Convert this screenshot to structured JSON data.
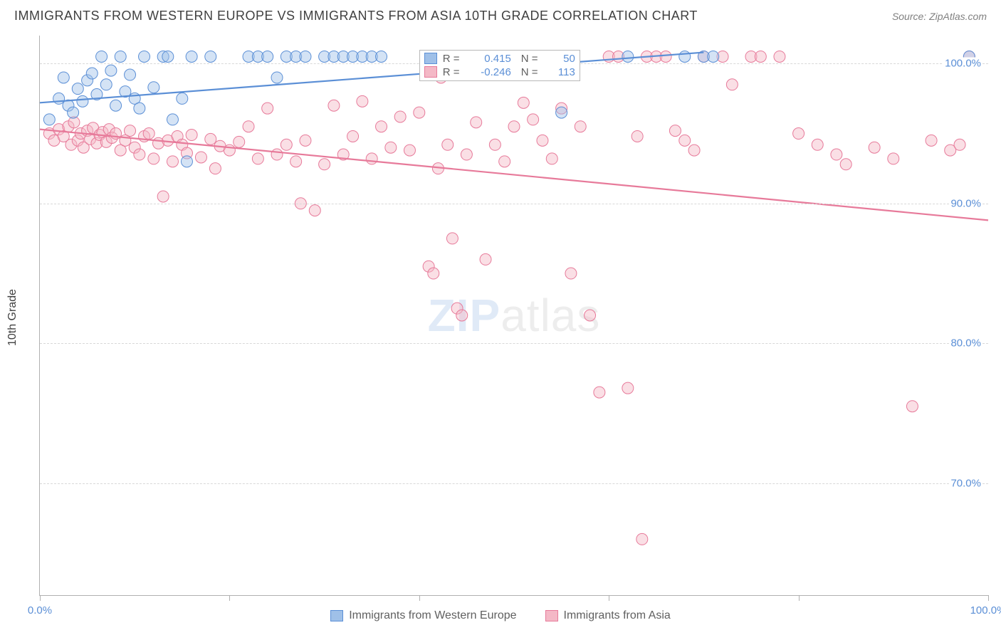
{
  "title": "IMMIGRANTS FROM WESTERN EUROPE VS IMMIGRANTS FROM ASIA 10TH GRADE CORRELATION CHART",
  "source": "Source: ZipAtlas.com",
  "watermark_strong": "ZIP",
  "watermark_light": "atlas",
  "ylabel": "10th Grade",
  "chart": {
    "type": "scatter-with-trend",
    "background_color": "#ffffff",
    "grid_color": "#d8d8d8",
    "axis_color": "#b0b0b0",
    "tick_label_color": "#5b8fd6",
    "xlim": [
      0,
      100
    ],
    "ylim": [
      62,
      102
    ],
    "xticks": [
      0,
      20,
      40,
      60,
      80,
      100
    ],
    "xtick_labels_shown": {
      "0": "0.0%",
      "100": "100.0%"
    },
    "yticks": [
      70,
      80,
      90,
      100
    ],
    "ytick_labels": {
      "70": "70.0%",
      "80": "80.0%",
      "90": "90.0%",
      "100": "100.0%"
    },
    "marker_radius": 8,
    "marker_opacity": 0.45,
    "trend_width": 2.2,
    "series": [
      {
        "name": "Immigrants from Western Europe",
        "color_fill": "#9fc0e8",
        "color_stroke": "#5b8fd6",
        "R": "0.415",
        "N": "50",
        "trend": {
          "x1": 0,
          "y1": 97.2,
          "x2": 70,
          "y2": 100.8
        },
        "points": [
          [
            1,
            96
          ],
          [
            2,
            97.5
          ],
          [
            2.5,
            99
          ],
          [
            3,
            97
          ],
          [
            3.5,
            96.5
          ],
          [
            4,
            98.2
          ],
          [
            4.5,
            97.3
          ],
          [
            5,
            98.8
          ],
          [
            5.5,
            99.3
          ],
          [
            6,
            97.8
          ],
          [
            6.5,
            100.5
          ],
          [
            7,
            98.5
          ],
          [
            7.5,
            99.5
          ],
          [
            8,
            97
          ],
          [
            8.5,
            100.5
          ],
          [
            9,
            98
          ],
          [
            9.5,
            99.2
          ],
          [
            10,
            97.5
          ],
          [
            10.5,
            96.8
          ],
          [
            11,
            100.5
          ],
          [
            12,
            98.3
          ],
          [
            13,
            100.5
          ],
          [
            13.5,
            100.5
          ],
          [
            14,
            96
          ],
          [
            15,
            97.5
          ],
          [
            15.5,
            93
          ],
          [
            16,
            100.5
          ],
          [
            18,
            100.5
          ],
          [
            22,
            100.5
          ],
          [
            23,
            100.5
          ],
          [
            24,
            100.5
          ],
          [
            25,
            99
          ],
          [
            26,
            100.5
          ],
          [
            27,
            100.5
          ],
          [
            28,
            100.5
          ],
          [
            30,
            100.5
          ],
          [
            31,
            100.5
          ],
          [
            32,
            100.5
          ],
          [
            33,
            100.5
          ],
          [
            34,
            100.5
          ],
          [
            35,
            100.5
          ],
          [
            36,
            100.5
          ],
          [
            51,
            100.5
          ],
          [
            53,
            100.5
          ],
          [
            55,
            96.5
          ],
          [
            62,
            100.5
          ],
          [
            68,
            100.5
          ],
          [
            70,
            100.5
          ],
          [
            71,
            100.5
          ],
          [
            98,
            100.5
          ]
        ]
      },
      {
        "name": "Immigrants from Asia",
        "color_fill": "#f4b8c6",
        "color_stroke": "#e77a9a",
        "R": "-0.246",
        "N": "113",
        "trend": {
          "x1": 0,
          "y1": 95.3,
          "x2": 100,
          "y2": 88.8
        },
        "points": [
          [
            1,
            95
          ],
          [
            1.5,
            94.5
          ],
          [
            2,
            95.3
          ],
          [
            2.5,
            94.8
          ],
          [
            3,
            95.5
          ],
          [
            3.3,
            94.2
          ],
          [
            3.6,
            95.8
          ],
          [
            4,
            94.5
          ],
          [
            4.3,
            95
          ],
          [
            4.6,
            94
          ],
          [
            5,
            95.2
          ],
          [
            5.3,
            94.6
          ],
          [
            5.6,
            95.4
          ],
          [
            6,
            94.3
          ],
          [
            6.3,
            94.9
          ],
          [
            6.6,
            95.1
          ],
          [
            7,
            94.4
          ],
          [
            7.3,
            95.3
          ],
          [
            7.6,
            94.7
          ],
          [
            8,
            95
          ],
          [
            8.5,
            93.8
          ],
          [
            9,
            94.5
          ],
          [
            9.5,
            95.2
          ],
          [
            10,
            94
          ],
          [
            10.5,
            93.5
          ],
          [
            11,
            94.8
          ],
          [
            11.5,
            95
          ],
          [
            12,
            93.2
          ],
          [
            12.5,
            94.3
          ],
          [
            13,
            90.5
          ],
          [
            13.5,
            94.5
          ],
          [
            14,
            93
          ],
          [
            14.5,
            94.8
          ],
          [
            15,
            94.2
          ],
          [
            15.5,
            93.6
          ],
          [
            16,
            94.9
          ],
          [
            17,
            93.3
          ],
          [
            18,
            94.6
          ],
          [
            18.5,
            92.5
          ],
          [
            19,
            94.1
          ],
          [
            20,
            93.8
          ],
          [
            21,
            94.4
          ],
          [
            22,
            95.5
          ],
          [
            23,
            93.2
          ],
          [
            24,
            96.8
          ],
          [
            25,
            93.5
          ],
          [
            26,
            94.2
          ],
          [
            27,
            93
          ],
          [
            27.5,
            90
          ],
          [
            28,
            94.5
          ],
          [
            29,
            89.5
          ],
          [
            30,
            92.8
          ],
          [
            31,
            97
          ],
          [
            32,
            93.5
          ],
          [
            33,
            94.8
          ],
          [
            34,
            97.3
          ],
          [
            35,
            93.2
          ],
          [
            36,
            95.5
          ],
          [
            37,
            94
          ],
          [
            38,
            96.2
          ],
          [
            39,
            93.8
          ],
          [
            40,
            96.5
          ],
          [
            41,
            85.5
          ],
          [
            41.5,
            85
          ],
          [
            42,
            92.5
          ],
          [
            42.3,
            99
          ],
          [
            43,
            94.2
          ],
          [
            43.5,
            87.5
          ],
          [
            44,
            82.5
          ],
          [
            44.5,
            82
          ],
          [
            45,
            93.5
          ],
          [
            46,
            95.8
          ],
          [
            47,
            86
          ],
          [
            48,
            94.2
          ],
          [
            49,
            93
          ],
          [
            50,
            95.5
          ],
          [
            51,
            97.2
          ],
          [
            52,
            96
          ],
          [
            53,
            94.5
          ],
          [
            54,
            93.2
          ],
          [
            55,
            96.8
          ],
          [
            56,
            85
          ],
          [
            57,
            95.5
          ],
          [
            58,
            82
          ],
          [
            59,
            76.5
          ],
          [
            60,
            100.5
          ],
          [
            61,
            100.5
          ],
          [
            62,
            76.8
          ],
          [
            63,
            94.8
          ],
          [
            63.5,
            66
          ],
          [
            64,
            100.5
          ],
          [
            65,
            100.5
          ],
          [
            66,
            100.5
          ],
          [
            67,
            95.2
          ],
          [
            68,
            94.5
          ],
          [
            69,
            93.8
          ],
          [
            70,
            100.5
          ],
          [
            72,
            100.5
          ],
          [
            73,
            98.5
          ],
          [
            75,
            100.5
          ],
          [
            76,
            100.5
          ],
          [
            78,
            100.5
          ],
          [
            80,
            95
          ],
          [
            82,
            94.2
          ],
          [
            84,
            93.5
          ],
          [
            85,
            92.8
          ],
          [
            88,
            94
          ],
          [
            90,
            93.2
          ],
          [
            92,
            75.5
          ],
          [
            94,
            94.5
          ],
          [
            96,
            93.8
          ],
          [
            97,
            94.2
          ],
          [
            98,
            100.5
          ]
        ]
      }
    ]
  },
  "legend_top": {
    "label_r": "R =",
    "label_n": "N ="
  },
  "bottom_legend": {
    "items": [
      "Immigrants from Western Europe",
      "Immigrants from Asia"
    ]
  }
}
